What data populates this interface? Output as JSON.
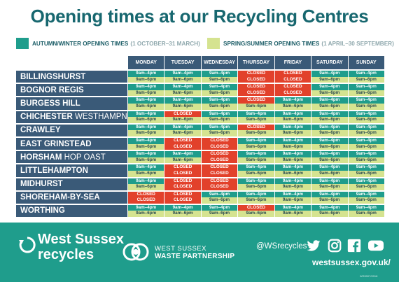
{
  "title": "Opening times at our Recycling Centres",
  "legend": {
    "autumn": {
      "label": "AUTUMN/WINTER OPENING TIMES",
      "range": "(1 OCTOBER–31 MARCH)",
      "color": "#1f9d8c"
    },
    "spring": {
      "label": "SPRING/SUMMER OPENING TIMES",
      "range": "(1 APRIL–30 SEPTEMBER)",
      "color": "#d5e390"
    }
  },
  "days": [
    "MONDAY",
    "TUESDAY",
    "WEDNESDAY",
    "THURSDAY",
    "FRIDAY",
    "SATURDAY",
    "SUNDAY"
  ],
  "centres": [
    {
      "name": "BILLINGSHURST",
      "suffix": "",
      "aw": [
        "9am–4pm",
        "9am–4pm",
        "9am–4pm",
        "CLOSED",
        "CLOSED",
        "9am–4pm",
        "9am–4pm"
      ],
      "ss": [
        "9am–6pm",
        "9am–6pm",
        "9am–6pm",
        "CLOSED",
        "CLOSED",
        "9am–6pm",
        "9am–6pm"
      ]
    },
    {
      "name": "BOGNOR REGIS",
      "suffix": "",
      "aw": [
        "9am–4pm",
        "9am–4pm",
        "9am–4pm",
        "CLOSED",
        "CLOSED",
        "9am–4pm",
        "9am–4pm"
      ],
      "ss": [
        "9am–6pm",
        "9am–6pm",
        "9am–6pm",
        "CLOSED",
        "CLOSED",
        "9am–6pm",
        "9am–6pm"
      ]
    },
    {
      "name": "BURGESS HILL",
      "suffix": "",
      "aw": [
        "9am–4pm",
        "9am–4pm",
        "9am–4pm",
        "CLOSED",
        "9am–4pm",
        "9am–4pm",
        "9am–4pm"
      ],
      "ss": [
        "9am–6pm",
        "9am–6pm",
        "9am–6pm",
        "9am–6pm",
        "9am–6pm",
        "9am–6pm",
        "9am–6pm"
      ]
    },
    {
      "name": "CHICHESTER",
      "suffix": " WESTHAMPNETT",
      "aw": [
        "9am–4pm",
        "CLOSED",
        "9am–4pm",
        "9am–4pm",
        "9am–4pm",
        "9am–4pm",
        "9am–4pm"
      ],
      "ss": [
        "9am–6pm",
        "9am–6pm",
        "9am–6pm",
        "9am–6pm",
        "9am–6pm",
        "9am–6pm",
        "9am–6pm"
      ]
    },
    {
      "name": "CRAWLEY",
      "suffix": "",
      "aw": [
        "9am–4pm",
        "9am–4pm",
        "9am–4pm",
        "CLOSED",
        "9am–4pm",
        "9am–4pm",
        "9am–4pm"
      ],
      "ss": [
        "9am–6pm",
        "9am–6pm",
        "9am–6pm",
        "9am–6pm",
        "9am–6pm",
        "9am–6pm",
        "9am–6pm"
      ]
    },
    {
      "name": "EAST GRINSTEAD",
      "suffix": "",
      "aw": [
        "9am–4pm",
        "CLOSED",
        "CLOSED",
        "9am–4pm",
        "9am–4pm",
        "9am–4pm",
        "9am–4pm"
      ],
      "ss": [
        "9am–6pm",
        "CLOSED",
        "CLOSED",
        "9am–6pm",
        "9am–6pm",
        "9am–6pm",
        "9am–6pm"
      ]
    },
    {
      "name": "HORSHAM",
      "suffix": " HOP OAST",
      "aw": [
        "9am–4pm",
        "9am–4pm",
        "CLOSED",
        "9am–4pm",
        "9am–4pm",
        "9am–4pm",
        "9am–4pm"
      ],
      "ss": [
        "9am–6pm",
        "9am–6pm",
        "CLOSED",
        "9am–6pm",
        "9am–6pm",
        "9am–6pm",
        "9am–6pm"
      ]
    },
    {
      "name": "LITTLEHAMPTON",
      "suffix": "",
      "aw": [
        "9am–4pm",
        "CLOSED",
        "CLOSED",
        "9am–4pm",
        "9am–4pm",
        "9am–4pm",
        "9am–4pm"
      ],
      "ss": [
        "9am–6pm",
        "CLOSED",
        "CLOSED",
        "9am–6pm",
        "9am–6pm",
        "9am–6pm",
        "9am–6pm"
      ]
    },
    {
      "name": "MIDHURST",
      "suffix": "",
      "aw": [
        "9am–4pm",
        "CLOSED",
        "CLOSED",
        "9am–4pm",
        "9am–4pm",
        "9am–4pm",
        "9am–4pm"
      ],
      "ss": [
        "9am–6pm",
        "CLOSED",
        "CLOSED",
        "9am–6pm",
        "9am–6pm",
        "9am–6pm",
        "9am–6pm"
      ]
    },
    {
      "name": "SHOREHAM-BY-SEA",
      "suffix": "",
      "aw": [
        "CLOSED",
        "CLOSED",
        "9am–4pm",
        "9am–4pm",
        "9am–4pm",
        "9am–4pm",
        "9am–4pm"
      ],
      "ss": [
        "CLOSED",
        "CLOSED",
        "9am–6pm",
        "9am–6pm",
        "9am–6pm",
        "9am–6pm",
        "9am–6pm"
      ]
    },
    {
      "name": "WORTHING",
      "suffix": "",
      "aw": [
        "9am–4pm",
        "9am–4pm",
        "9am–4pm",
        "CLOSED",
        "9am–4pm",
        "9am–4pm",
        "9am–4pm"
      ],
      "ss": [
        "9am–6pm",
        "9am–6pm",
        "9am–6pm",
        "9am–6pm",
        "9am–6pm",
        "9am–6pm",
        "9am–6pm"
      ]
    }
  ],
  "footer": {
    "logo_line1": "West Sussex",
    "logo_line2": "recycles",
    "partnership_line1": "WEST SUSSEX",
    "partnership_line2": "WASTE PARTNERSHIP",
    "handle": "@WSrecycles",
    "social_icons": [
      "twitter-icon",
      "instagram-icon",
      "facebook-icon",
      "youtube-icon"
    ],
    "website": "westsussex.gov.uk/",
    "code": "WS5907/0918"
  },
  "colors": {
    "heading": "#17676f",
    "header_bg": "#3a5a78",
    "autumn": "#1f9d8c",
    "spring": "#d5e390",
    "closed": "#e2412b",
    "footer": "#1f9d8c"
  }
}
